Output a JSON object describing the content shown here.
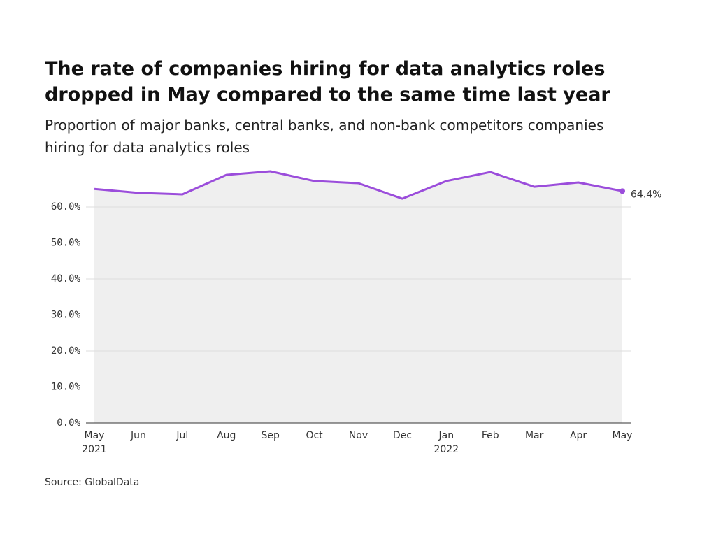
{
  "chart_data": {
    "type": "line",
    "title": "The rate of companies hiring for data analytics roles dropped in May compared to the same time last year",
    "subtitle": "Proportion of major banks, central banks, and non-bank competitors companies hiring for data analytics roles",
    "source": "Source: GlobalData",
    "categories": [
      "May 2021",
      "Jun",
      "Jul",
      "Aug",
      "Sep",
      "Oct",
      "Nov",
      "Dec",
      "Jan 2022",
      "Feb",
      "Mar",
      "Apr",
      "May"
    ],
    "series": [
      {
        "name": "Companies hiring for data analytics roles",
        "color": "#9b4ddb",
        "values": [
          65.0,
          63.9,
          63.5,
          68.9,
          69.9,
          67.2,
          66.6,
          62.3,
          67.2,
          69.7,
          65.6,
          66.8,
          64.4
        ],
        "value_labels": [
          null,
          null,
          null,
          null,
          null,
          null,
          null,
          null,
          null,
          null,
          null,
          null,
          "64.4%"
        ]
      }
    ],
    "ylim": [
      0,
      70
    ],
    "yticks": [
      {
        "value": 0,
        "label": "0.0%"
      },
      {
        "value": 10,
        "label": "10.0%"
      },
      {
        "value": 20,
        "label": "20.0%"
      },
      {
        "value": 30,
        "label": "30.0%"
      },
      {
        "value": 40,
        "label": "40.0%"
      },
      {
        "value": 50,
        "label": "50.0%"
      },
      {
        "value": 60,
        "label": "60.0%"
      }
    ],
    "grid": true
  }
}
